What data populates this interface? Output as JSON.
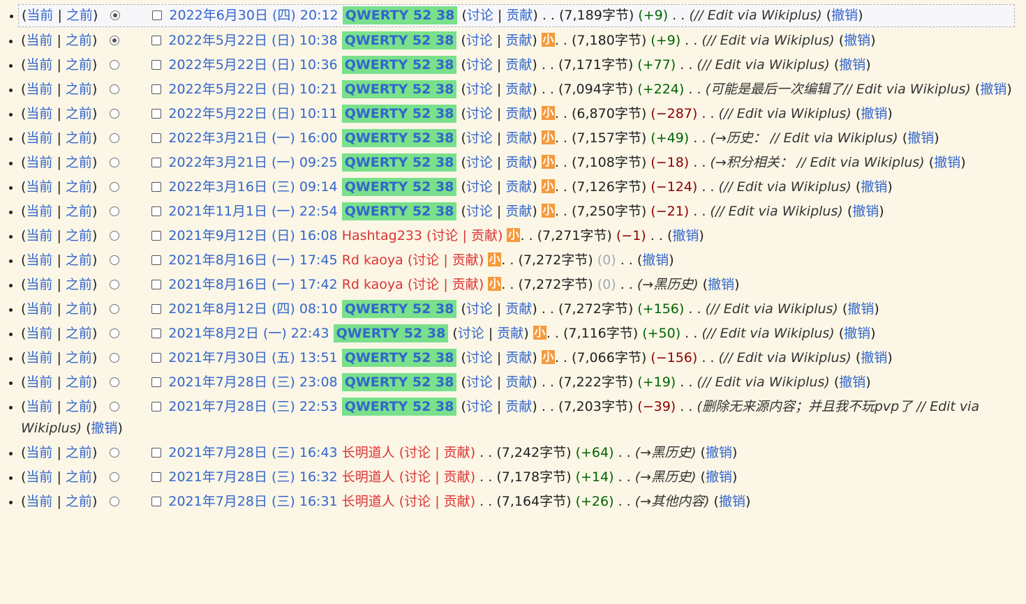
{
  "labels": {
    "cur": "当前",
    "prev": "之前",
    "talk": "讨论",
    "contribs": "贡献",
    "undo": "撤销",
    "minor": "小",
    "dots": ". ."
  },
  "rows": [
    {
      "date": "2022年6月30日 (四) 20:12",
      "user": "QWERTY 52 38",
      "tag": true,
      "minor": false,
      "size": "(7,189字节)",
      "diff": "(+9)",
      "sign": "pos",
      "comment": "(// Edit via Wikiplus)",
      "radio": "on"
    },
    {
      "date": "2022年5月22日 (日) 10:38",
      "user": "QWERTY 52 38",
      "tag": true,
      "minor": true,
      "size": "(7,180字节)",
      "diff": "(+9)",
      "sign": "pos",
      "comment": "(// Edit via Wikiplus)",
      "radio": "on"
    },
    {
      "date": "2022年5月22日 (日) 10:36",
      "user": "QWERTY 52 38",
      "tag": true,
      "minor": false,
      "size": "(7,171字节)",
      "diff": "(+77)",
      "sign": "pos",
      "comment": "(// Edit via Wikiplus)",
      "radio": "off"
    },
    {
      "date": "2022年5月22日 (日) 10:21",
      "user": "QWERTY 52 38",
      "tag": true,
      "minor": false,
      "size": "(7,094字节)",
      "diff": "(+224)",
      "sign": "pos",
      "comment": "(可能是最后一次编辑了// Edit via Wikiplus)",
      "radio": "off"
    },
    {
      "date": "2022年5月22日 (日) 10:11",
      "user": "QWERTY 52 38",
      "tag": true,
      "minor": true,
      "size": "(6,870字节)",
      "diff": "(−287)",
      "sign": "neg",
      "comment": "(// Edit via Wikiplus)",
      "radio": "off"
    },
    {
      "date": "2022年3月21日 (一) 16:00",
      "user": "QWERTY 52 38",
      "tag": true,
      "minor": true,
      "size": "(7,157字节)",
      "diff": "(+49)",
      "sign": "pos",
      "comment": "(→历史： // Edit via Wikiplus)",
      "radio": "off"
    },
    {
      "date": "2022年3月21日 (一) 09:25",
      "user": "QWERTY 52 38",
      "tag": true,
      "minor": true,
      "size": "(7,108字节)",
      "diff": "(−18)",
      "sign": "neg",
      "comment": "(→积分相关： // Edit via Wikiplus)",
      "radio": "off"
    },
    {
      "date": "2022年3月16日 (三) 09:14",
      "user": "QWERTY 52 38",
      "tag": true,
      "minor": true,
      "size": "(7,126字节)",
      "diff": "(−124)",
      "sign": "neg",
      "comment": "(// Edit via Wikiplus)",
      "radio": "off"
    },
    {
      "date": "2021年11月1日 (一) 22:54",
      "user": "QWERTY 52 38",
      "tag": true,
      "minor": true,
      "size": "(7,250字节)",
      "diff": "(−21)",
      "sign": "neg",
      "comment": "(// Edit via Wikiplus)",
      "radio": "off"
    },
    {
      "date": "2021年9月12日 (日) 16:08",
      "user": "Hashtag233",
      "tag": false,
      "minor": true,
      "size": "(7,271字节)",
      "diff": "(−1)",
      "sign": "neg",
      "comment": "",
      "radio": "off"
    },
    {
      "date": "2021年8月16日 (一) 17:45",
      "user": "Rd kaoya",
      "tag": false,
      "minor": true,
      "size": "(7,272字节)",
      "diff": "(0)",
      "sign": "zero",
      "comment": "",
      "radio": "off"
    },
    {
      "date": "2021年8月16日 (一) 17:42",
      "user": "Rd kaoya",
      "tag": false,
      "minor": true,
      "size": "(7,272字节)",
      "diff": "(0)",
      "sign": "zero",
      "comment": "(→黑历史)",
      "radio": "off"
    },
    {
      "date": "2021年8月12日 (四) 08:10",
      "user": "QWERTY 52 38",
      "tag": true,
      "minor": false,
      "size": "(7,272字节)",
      "diff": "(+156)",
      "sign": "pos",
      "comment": "(// Edit via Wikiplus)",
      "radio": "off"
    },
    {
      "date": "2021年8月2日 (一) 22:43",
      "user": "QWERTY 52 38",
      "tag": true,
      "minor": true,
      "size": "(7,116字节)",
      "diff": "(+50)",
      "sign": "pos",
      "comment": "(// Edit via Wikiplus)",
      "radio": "off"
    },
    {
      "date": "2021年7月30日 (五) 13:51",
      "user": "QWERTY 52 38",
      "tag": true,
      "minor": true,
      "size": "(7,066字节)",
      "diff": "(−156)",
      "sign": "neg",
      "comment": "(// Edit via Wikiplus)",
      "radio": "off"
    },
    {
      "date": "2021年7月28日 (三) 23:08",
      "user": "QWERTY 52 38",
      "tag": true,
      "minor": false,
      "size": "(7,222字节)",
      "diff": "(+19)",
      "sign": "pos",
      "comment": "(// Edit via Wikiplus)",
      "radio": "off"
    },
    {
      "date": "2021年7月28日 (三) 22:53",
      "user": "QWERTY 52 38",
      "tag": true,
      "minor": false,
      "size": "(7,203字节)",
      "diff": "(−39)",
      "sign": "neg",
      "comment": "(删除无来源内容；并且我不玩pvp了 // Edit via Wikiplus)",
      "radio": "off"
    },
    {
      "date": "2021年7月28日 (三) 16:43",
      "user": "长明道人",
      "tag": false,
      "minor": false,
      "size": "(7,242字节)",
      "diff": "(+64)",
      "sign": "pos",
      "comment": "(→黑历史)",
      "radio": "off"
    },
    {
      "date": "2021年7月28日 (三) 16:32",
      "user": "长明道人",
      "tag": false,
      "minor": false,
      "size": "(7,178字节)",
      "diff": "(+14)",
      "sign": "pos",
      "comment": "(→黑历史)",
      "radio": "off"
    },
    {
      "date": "2021年7月28日 (三) 16:31",
      "user": "长明道人",
      "tag": false,
      "minor": false,
      "size": "(7,164字节)",
      "diff": "(+26)",
      "sign": "pos",
      "comment": "(→其他内容)",
      "radio": "off"
    }
  ]
}
